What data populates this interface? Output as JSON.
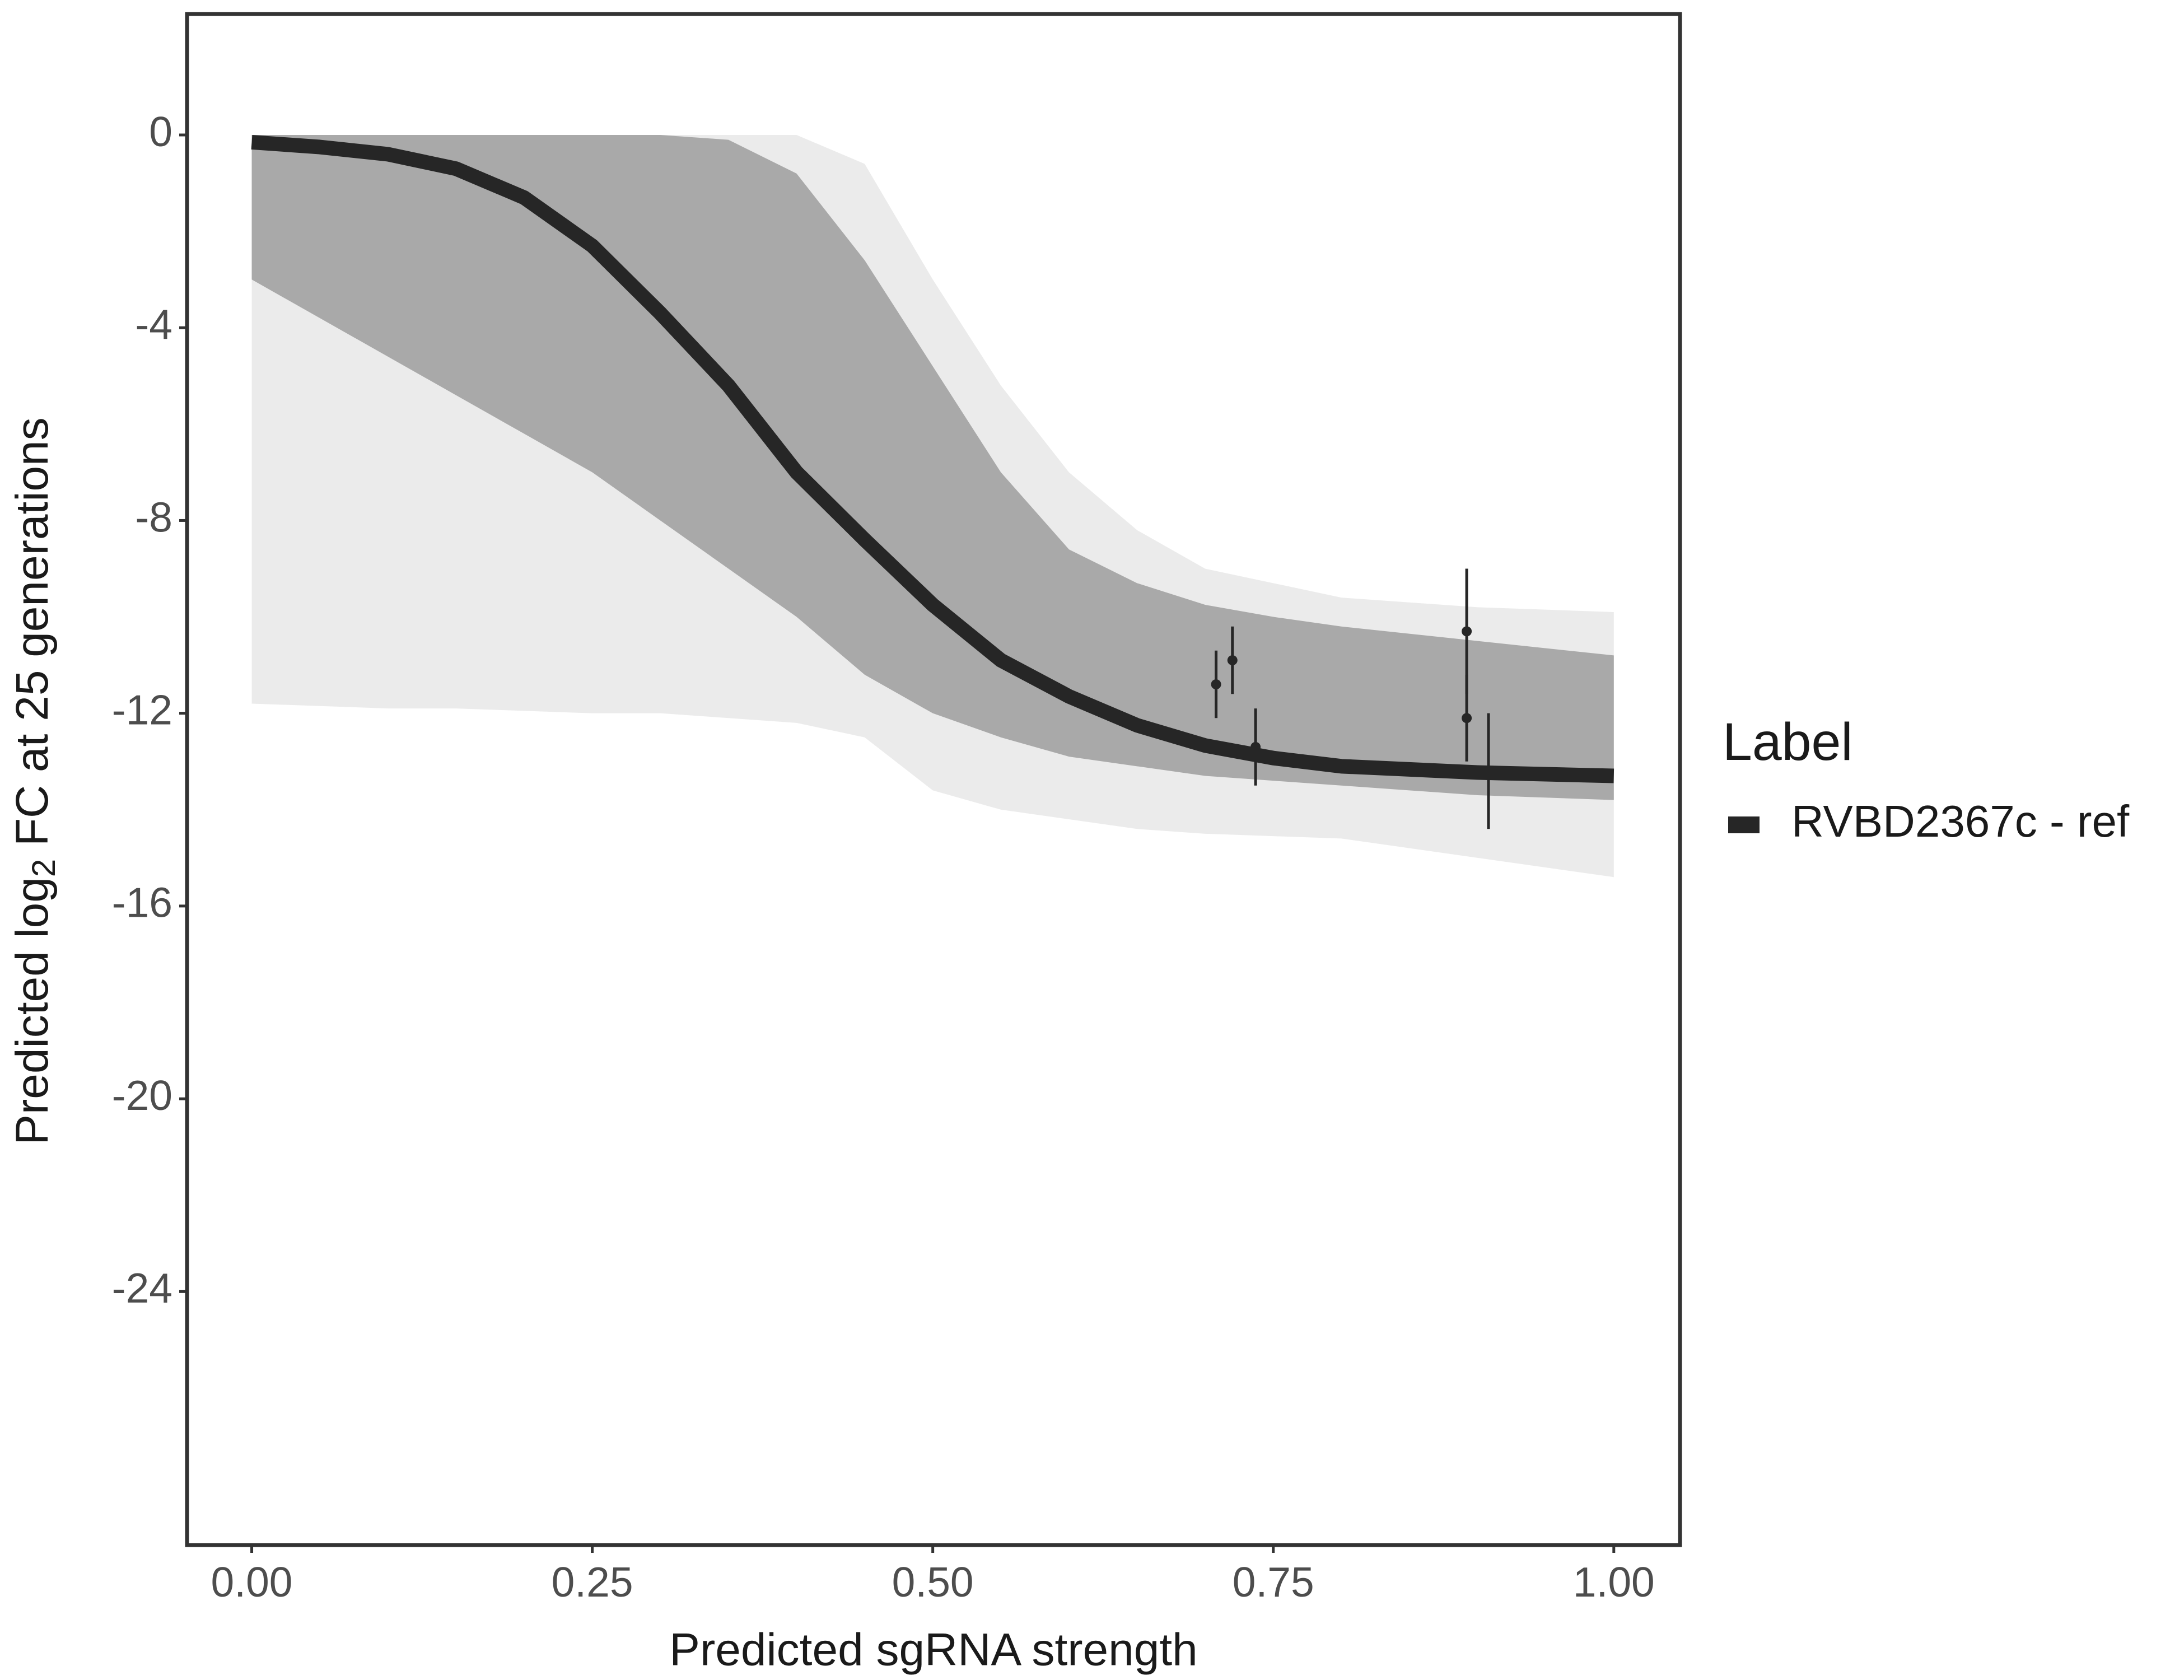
{
  "chart_data": {
    "type": "line",
    "xlabel": "Predicted sgRNA strength",
    "ylabel": {
      "before": "Predicted  log",
      "sub": "2",
      "after": " FC at 25 generations"
    },
    "legend_title": "Label",
    "xlim": [
      -0.0475,
      1.0486
    ],
    "ylim": [
      -29.26,
      2.51
    ],
    "xticks": [
      {
        "value": 0,
        "label": "0.00"
      },
      {
        "value": 0.25,
        "label": "0.25"
      },
      {
        "value": 0.5,
        "label": "0.50"
      },
      {
        "value": 0.75,
        "label": "0.75"
      },
      {
        "value": 1,
        "label": "1.00"
      }
    ],
    "yticks": [
      0,
      -4,
      -8,
      -12,
      -16,
      -20,
      -24
    ],
    "x": [
      0,
      0.05,
      0.1,
      0.15,
      0.2,
      0.25,
      0.3,
      0.35,
      0.4,
      0.45,
      0.5,
      0.55,
      0.6,
      0.65,
      0.7,
      0.75,
      0.8,
      0.9,
      1.0
    ],
    "bands": [
      {
        "color": "#ebebeb",
        "upper": [
          0,
          0,
          0,
          0,
          0,
          0,
          0,
          0,
          0,
          -0.6,
          -3,
          -5.2,
          -7,
          -8.2,
          -9,
          -9.3,
          -9.6,
          -9.8,
          -9.9
        ],
        "lower": [
          -11.8,
          -11.85,
          -11.9,
          -11.9,
          -11.95,
          -12,
          -12,
          -12.1,
          -12.2,
          -12.5,
          -13.6,
          -14,
          -14.2,
          -14.4,
          -14.5,
          -14.55,
          -14.6,
          -15,
          -15.4
        ]
      },
      {
        "color": "#a9a9a9",
        "upper": [
          0,
          0,
          0,
          0,
          0,
          0,
          0,
          -0.1,
          -0.8,
          -2.6,
          -4.8,
          -7,
          -8.6,
          -9.3,
          -9.75,
          -10,
          -10.2,
          -10.5,
          -10.8
        ],
        "lower": [
          -3,
          -3.8,
          -4.6,
          -5.4,
          -6.2,
          -7,
          -8,
          -9,
          -10,
          -11.2,
          -12,
          -12.5,
          -12.9,
          -13.1,
          -13.3,
          -13.4,
          -13.5,
          -13.7,
          -13.8
        ]
      }
    ],
    "series": [
      {
        "name": "RVBD2367c - ref",
        "color": "#262626",
        "values": [
          -0.15,
          -0.25,
          -0.4,
          -0.7,
          -1.3,
          -2.3,
          -3.7,
          -5.2,
          -7,
          -8.4,
          -9.75,
          -10.9,
          -11.65,
          -12.25,
          -12.67,
          -12.93,
          -13.1,
          -13.23,
          -13.3
        ]
      }
    ],
    "points": {
      "color": "#262626",
      "x": [
        0.708,
        0.72,
        0.737,
        0.892,
        0.892,
        0.908
      ],
      "y": [
        -11.4,
        -10.9,
        -12.7,
        -10.3,
        -12.1,
        -13.2
      ],
      "err": [
        0.7,
        0.7,
        0.8,
        1.3,
        0.9,
        1.2
      ]
    }
  }
}
